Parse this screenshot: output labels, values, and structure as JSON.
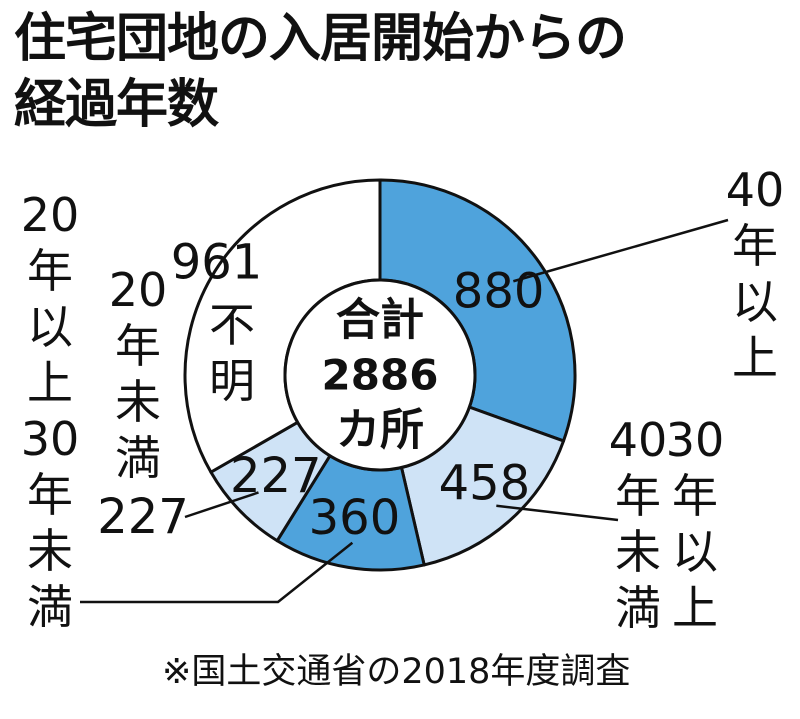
{
  "title": {
    "line1": "住宅団地の入居開始からの",
    "line2": "経過年数"
  },
  "chart_data": {
    "type": "pie",
    "variant": "donut",
    "categories": [
      "40年以上",
      "30年以上40年未満",
      "20年以上30年未満",
      "20年未満",
      "不明"
    ],
    "category_labels": [
      [
        "40",
        "年",
        "以",
        "上"
      ],
      [
        "30",
        "年",
        "以",
        "上"
      ],
      [
        "20",
        "年",
        "以",
        "上",
        "30",
        "年",
        "未",
        "満"
      ],
      [
        "20",
        "年",
        "未",
        "満"
      ],
      [
        "不",
        "明"
      ]
    ],
    "category_label_secondary": [
      "40",
      "年",
      "未",
      "満"
    ],
    "values": [
      880,
      458,
      360,
      227,
      961
    ],
    "colors": [
      "#4fa3dc",
      "#cfe3f6",
      "#4fa3dc",
      "#cfe3f6",
      "#ffffff"
    ],
    "center_label": [
      "合計",
      "2886",
      "カ所"
    ],
    "total": 2886
  },
  "note": "※国土交通省の2018年度調査"
}
